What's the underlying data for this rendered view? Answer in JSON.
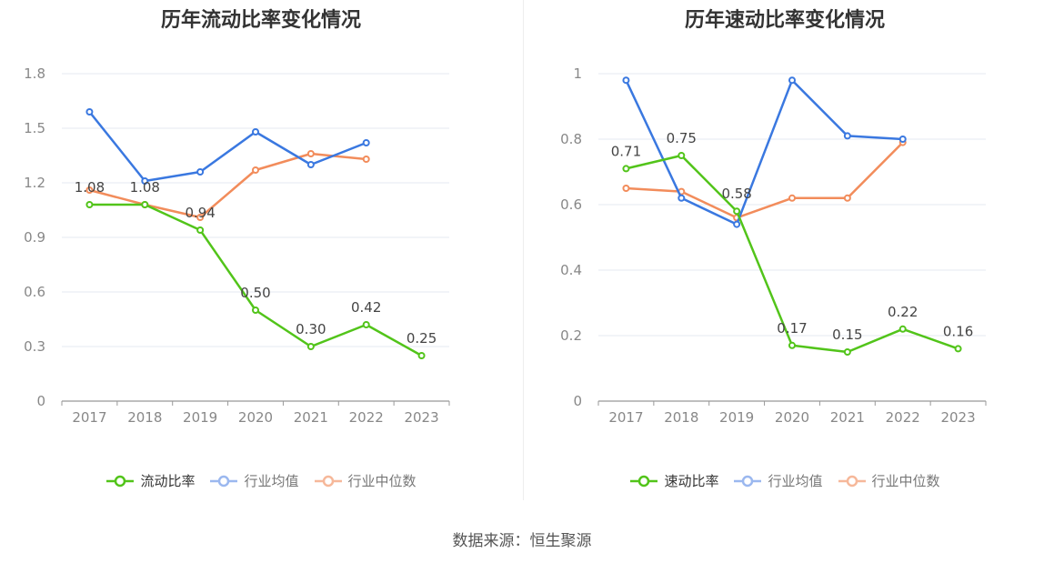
{
  "source_text": "数据来源：恒生聚源",
  "chart_data": [
    {
      "type": "line",
      "title": "历年流动比率变化情况",
      "categories": [
        "2017",
        "2018",
        "2019",
        "2020",
        "2021",
        "2022",
        "2023"
      ],
      "y_ticks": [
        "0",
        "0.3",
        "0.6",
        "0.9",
        "1.2",
        "1.5",
        "1.8"
      ],
      "ylim": [
        0,
        1.8
      ],
      "grid": true,
      "legend_position": "bottom",
      "series": [
        {
          "name": "流动比率",
          "color": "#52c41a",
          "values": [
            1.08,
            1.08,
            0.94,
            0.5,
            0.3,
            0.42,
            0.25
          ],
          "labels": [
            "1.08",
            "1.08",
            "0.94",
            "0.50",
            "0.30",
            "0.42",
            "0.25"
          ]
        },
        {
          "name": "行业均值",
          "color": "#3a78e0",
          "values": [
            1.59,
            1.21,
            1.26,
            1.48,
            1.3,
            1.42,
            null
          ]
        },
        {
          "name": "行业中位数",
          "color": "#f28c5b",
          "values": [
            1.16,
            1.08,
            1.01,
            1.27,
            1.36,
            1.33,
            null
          ]
        }
      ]
    },
    {
      "type": "line",
      "title": "历年速动比率变化情况",
      "categories": [
        "2017",
        "2018",
        "2019",
        "2020",
        "2021",
        "2022",
        "2023"
      ],
      "y_ticks": [
        "0",
        "0.2",
        "0.4",
        "0.6",
        "0.8",
        "1"
      ],
      "ylim": [
        0,
        1
      ],
      "grid": true,
      "legend_position": "bottom",
      "series": [
        {
          "name": "速动比率",
          "color": "#52c41a",
          "values": [
            0.71,
            0.75,
            0.58,
            0.17,
            0.15,
            0.22,
            0.16
          ],
          "labels": [
            "0.71",
            "0.75",
            "0.58",
            "0.17",
            "0.15",
            "0.22",
            "0.16"
          ]
        },
        {
          "name": "行业均值",
          "color": "#3a78e0",
          "values": [
            0.98,
            0.62,
            0.54,
            0.98,
            0.81,
            0.8,
            null
          ]
        },
        {
          "name": "行业中位数",
          "color": "#f28c5b",
          "values": [
            0.65,
            0.64,
            0.56,
            0.62,
            0.62,
            0.79,
            null
          ]
        }
      ]
    }
  ]
}
